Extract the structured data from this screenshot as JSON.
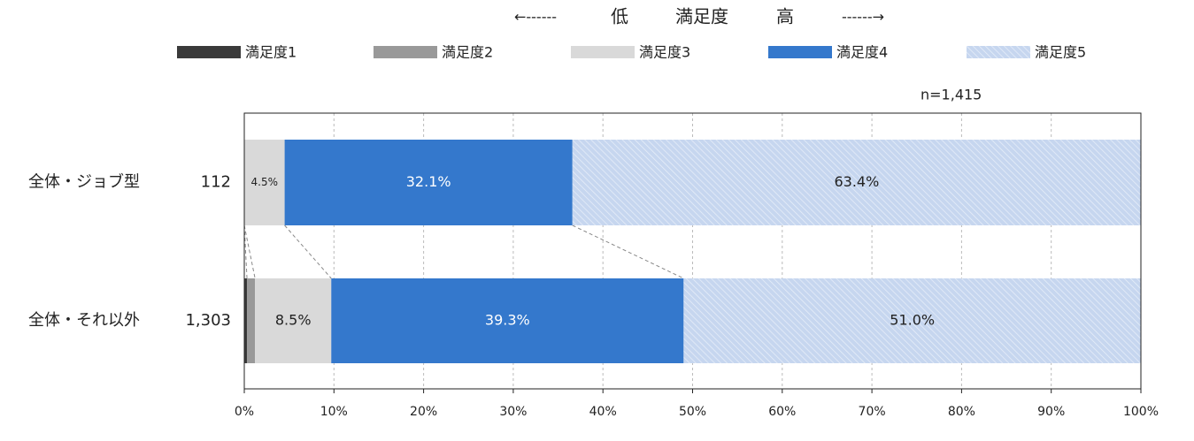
{
  "chart_data": {
    "type": "stacked_barh",
    "header": {
      "left_arrow": "←------",
      "low": "低",
      "middle": "満足度",
      "high": "高",
      "right_arrow": "------→"
    },
    "note": "n=1,415",
    "categories": [
      "全体・ジョブ型",
      "全体・それ以外"
    ],
    "category_counts": [
      112,
      {
        "value": 1303,
        "label": "1,303"
      }
    ],
    "series": [
      {
        "name": "満足度1",
        "color": "#3a3a3a",
        "values": [
          0,
          0.3
        ]
      },
      {
        "name": "満足度2",
        "color": "#999999",
        "values": [
          0,
          0.9
        ]
      },
      {
        "name": "満足度3",
        "color": "#d9d9d9",
        "label_color": "#222222",
        "values": [
          4.5,
          8.5
        ],
        "value_labels": [
          "4.5%",
          "8.5%"
        ]
      },
      {
        "name": "満足度4",
        "color": "#3478cc",
        "label_color": "#ffffff",
        "values": [
          32.1,
          39.3
        ],
        "value_labels": [
          "32.1%",
          "39.3%"
        ]
      },
      {
        "name": "満足度5",
        "color": "#c6d6ef",
        "pattern": "hatch",
        "label_color": "#222222",
        "values": [
          63.4,
          51.0
        ],
        "value_labels": [
          "63.4%",
          "51.0%"
        ]
      }
    ],
    "xlim": [
      0,
      100
    ],
    "xticks": [
      {
        "value": 0,
        "label": "0%"
      },
      {
        "value": 10,
        "label": "10%"
      },
      {
        "value": 20,
        "label": "20%"
      },
      {
        "value": 30,
        "label": "30%"
      },
      {
        "value": 40,
        "label": "40%"
      },
      {
        "value": 50,
        "label": "50%"
      },
      {
        "value": 60,
        "label": "60%"
      },
      {
        "value": 70,
        "label": "70%"
      },
      {
        "value": 80,
        "label": "80%"
      },
      {
        "value": 90,
        "label": "90%"
      },
      {
        "value": 100,
        "label": "100%"
      }
    ],
    "grid": true,
    "connectors": true,
    "legend": "top"
  }
}
